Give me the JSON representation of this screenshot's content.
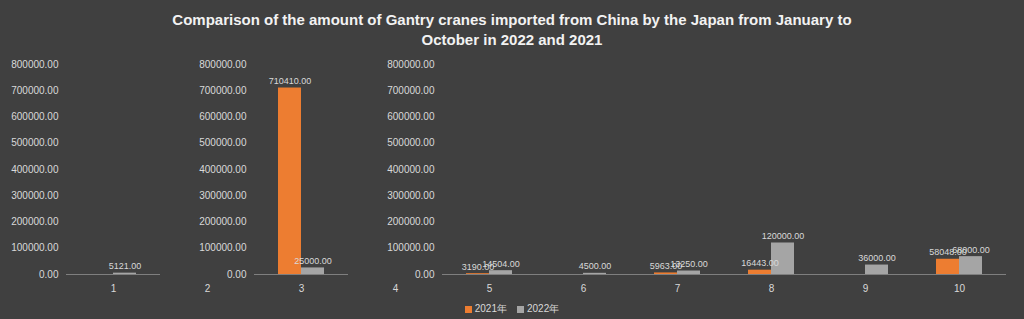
{
  "chart_data": {
    "type": "bar",
    "title": "Comparison of the amount of Gantry cranes imported from China by the Japan from January to October in 2022 and 2021",
    "categories": [
      "1",
      "2",
      "3",
      "4",
      "5",
      "6",
      "7",
      "8",
      "9",
      "10"
    ],
    "series": [
      {
        "name": "2021年",
        "color": "#ed7d31",
        "values": [
          null,
          null,
          710410,
          null,
          3190,
          null,
          5963,
          16443,
          null,
          58048
        ],
        "value_labels": [
          null,
          null,
          "710410.00",
          null,
          "3190.00",
          null,
          "5963.00",
          "16443.00",
          null,
          "58048.00"
        ]
      },
      {
        "name": "2022年",
        "color": "#a5a5a5",
        "values": [
          5121,
          null,
          25000,
          null,
          14504,
          4500,
          13250,
          120000,
          36000,
          68000
        ],
        "value_labels": [
          "5121.00",
          null,
          "25000.00",
          null,
          "14504.00",
          "4500.00",
          "13250.00",
          "120000.00",
          "36000.00",
          "68000.00"
        ]
      }
    ],
    "ylim": [
      0,
      800000
    ],
    "yticks": [
      {
        "value": 0,
        "label": "0.00"
      },
      {
        "value": 100000,
        "label": "100000.00"
      },
      {
        "value": 200000,
        "label": "200000.00"
      },
      {
        "value": 300000,
        "label": "300000.00"
      },
      {
        "value": 400000,
        "label": "400000.00"
      },
      {
        "value": 500000,
        "label": "500000.00"
      },
      {
        "value": 600000,
        "label": "600000.00"
      },
      {
        "value": 700000,
        "label": "700000.00"
      },
      {
        "value": 800000,
        "label": "800000.00"
      }
    ],
    "grid": false,
    "data_labels": true,
    "legend": "bottom"
  }
}
